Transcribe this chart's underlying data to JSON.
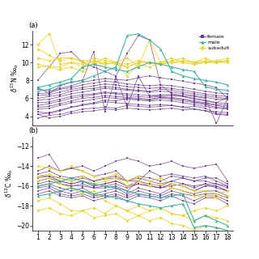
{
  "title_a": "(a)",
  "title_b": "(b)",
  "x_ticks": [
    1,
    2,
    3,
    4,
    5,
    6,
    7,
    8,
    9,
    10,
    11,
    12,
    13,
    14,
    15,
    16,
    17,
    18
  ],
  "ylim_a": [
    3.0,
    13.5
  ],
  "ylim_b": [
    -20.5,
    -11.0
  ],
  "yticks_a": [
    4,
    6,
    8,
    10,
    12
  ],
  "yticks_b": [
    -20,
    -18,
    -16,
    -14,
    -12
  ],
  "colors": {
    "female": "#6B3A8A",
    "male": "#3AAFA0",
    "subadult": "#E8D430"
  },
  "female_N": [
    [
      3.8,
      4.1,
      4.2,
      4.5,
      4.8,
      4.9,
      5.0,
      4.9,
      5.2,
      5.1,
      5.0,
      5.1,
      5.2,
      5.0,
      5.1,
      4.9,
      4.3,
      4.2
    ],
    [
      4.2,
      3.8,
      4.0,
      4.3,
      4.5,
      4.6,
      4.8,
      4.7,
      4.9,
      4.8,
      4.7,
      4.8,
      4.9,
      4.7,
      4.8,
      4.6,
      4.2,
      4.1
    ],
    [
      4.5,
      4.3,
      4.6,
      5.0,
      5.3,
      5.5,
      5.8,
      5.7,
      6.0,
      5.9,
      5.8,
      6.0,
      5.9,
      5.7,
      5.5,
      5.3,
      5.0,
      4.9
    ],
    [
      5.0,
      5.1,
      5.4,
      5.7,
      6.0,
      6.1,
      6.3,
      6.2,
      6.1,
      6.0,
      5.9,
      6.1,
      6.0,
      5.9,
      5.6,
      5.4,
      5.2,
      5.0
    ],
    [
      5.5,
      5.6,
      5.9,
      6.2,
      6.4,
      6.5,
      6.7,
      6.6,
      6.5,
      6.4,
      6.3,
      6.4,
      6.3,
      6.2,
      5.9,
      5.7,
      5.5,
      5.4
    ],
    [
      6.0,
      6.2,
      6.4,
      6.8,
      7.0,
      7.1,
      7.3,
      7.2,
      7.0,
      6.9,
      6.8,
      7.0,
      6.9,
      6.7,
      6.5,
      6.3,
      6.1,
      6.0
    ],
    [
      6.5,
      6.6,
      7.0,
      7.2,
      7.5,
      7.7,
      7.9,
      7.8,
      7.6,
      7.5,
      7.4,
      7.5,
      7.4,
      7.2,
      7.0,
      6.8,
      6.6,
      6.5
    ],
    [
      7.0,
      6.8,
      7.1,
      7.4,
      7.8,
      8.0,
      8.2,
      8.1,
      8.0,
      8.3,
      8.5,
      8.3,
      8.1,
      7.9,
      7.7,
      7.5,
      7.2,
      6.0
    ],
    [
      7.2,
      6.5,
      7.4,
      7.8,
      8.0,
      11.2,
      4.5,
      8.4,
      5.0,
      8.5,
      6.2,
      6.3,
      6.4,
      6.2,
      6.0,
      5.8,
      5.5,
      6.1
    ],
    [
      8.0,
      9.5,
      11.0,
      11.2,
      10.0,
      9.5,
      9.0,
      8.5,
      11.0,
      13.0,
      12.5,
      7.5,
      6.5,
      6.3,
      6.2,
      6.0,
      3.2,
      6.0
    ],
    [
      4.2,
      4.4,
      4.7,
      5.0,
      5.2,
      5.4,
      5.6,
      5.5,
      5.4,
      5.3,
      5.2,
      5.3,
      5.2,
      5.0,
      4.8,
      4.6,
      4.5,
      4.4
    ],
    [
      4.8,
      4.9,
      5.2,
      5.5,
      5.7,
      5.9,
      6.1,
      6.0,
      5.9,
      5.8,
      5.7,
      5.8,
      5.7,
      5.5,
      5.3,
      5.1,
      4.9,
      4.8
    ],
    [
      5.2,
      5.4,
      5.7,
      6.0,
      6.2,
      6.4,
      6.6,
      6.5,
      6.3,
      6.2,
      6.1,
      6.2,
      6.1,
      5.9,
      5.7,
      5.5,
      5.3,
      5.2
    ],
    [
      5.8,
      5.9,
      6.2,
      6.5,
      6.7,
      6.9,
      7.1,
      7.0,
      6.9,
      6.8,
      6.7,
      6.8,
      6.7,
      6.5,
      6.3,
      6.1,
      5.9,
      5.9
    ],
    [
      6.3,
      6.4,
      6.7,
      7.0,
      7.2,
      7.4,
      7.6,
      7.5,
      7.3,
      7.2,
      7.1,
      7.2,
      7.1,
      6.9,
      6.7,
      6.5,
      6.3,
      6.2
    ]
  ],
  "male_N": [
    [
      7.2,
      7.5,
      7.8,
      8.2,
      9.5,
      9.8,
      9.5,
      9.2,
      9.0,
      9.5,
      10.0,
      9.8,
      9.5,
      9.2,
      9.0,
      7.3,
      7.0,
      6.9
    ],
    [
      6.8,
      7.0,
      7.5,
      7.8,
      8.0,
      8.5,
      9.0,
      9.5,
      13.0,
      13.2,
      12.5,
      11.5,
      9.0,
      8.5,
      8.2,
      8.0,
      7.8,
      7.5
    ]
  ],
  "subadult_N": [
    [
      9.5,
      9.6,
      9.5,
      10.0,
      9.8,
      10.2,
      10.0,
      9.8,
      9.5,
      10.0,
      10.0,
      9.8,
      10.0,
      10.2,
      10.0,
      10.2,
      10.1,
      10.2
    ],
    [
      10.5,
      10.2,
      10.5,
      10.5,
      10.2,
      10.0,
      10.5,
      10.0,
      9.8,
      10.2,
      10.0,
      10.0,
      10.2,
      10.5,
      10.0,
      10.0,
      10.2,
      10.5
    ],
    [
      11.5,
      10.8,
      10.2,
      10.5,
      10.0,
      10.5,
      10.2,
      10.0,
      9.5,
      10.0,
      10.0,
      9.8,
      10.0,
      10.2,
      10.0,
      10.5,
      10.0,
      10.2
    ],
    [
      12.0,
      13.2,
      9.8,
      10.0,
      9.5,
      10.2,
      9.8,
      10.0,
      10.5,
      9.5,
      12.5,
      10.0,
      10.5,
      10.0,
      9.8,
      10.0,
      10.0,
      10.2
    ],
    [
      9.8,
      9.5,
      9.2,
      9.5,
      9.0,
      10.0,
      9.8,
      10.0,
      8.5,
      9.8,
      9.5,
      10.0,
      10.0,
      10.0,
      9.8,
      10.0,
      10.0,
      10.0
    ]
  ],
  "female_C": [
    [
      -13.2,
      -12.8,
      -14.5,
      -14.2,
      -14.0,
      -14.5,
      -14.0,
      -13.5,
      -13.2,
      -13.5,
      -14.0,
      -13.8,
      -13.5,
      -14.0,
      -14.2,
      -14.0,
      -13.8,
      -15.5
    ],
    [
      -14.5,
      -14.0,
      -14.5,
      -14.2,
      -14.5,
      -15.0,
      -14.8,
      -14.5,
      -15.5,
      -15.5,
      -14.5,
      -15.0,
      -14.8,
      -15.0,
      -15.2,
      -15.0,
      -15.5,
      -16.0
    ],
    [
      -15.0,
      -15.0,
      -15.2,
      -15.5,
      -15.2,
      -15.5,
      -15.3,
      -15.2,
      -15.5,
      -15.2,
      -15.5,
      -15.8,
      -15.5,
      -15.2,
      -15.5,
      -15.5,
      -15.8,
      -16.0
    ],
    [
      -15.5,
      -15.2,
      -15.5,
      -15.8,
      -15.5,
      -16.0,
      -15.8,
      -15.5,
      -16.0,
      -15.8,
      -16.0,
      -16.2,
      -16.0,
      -15.8,
      -16.0,
      -15.8,
      -16.2,
      -16.5
    ],
    [
      -15.8,
      -15.5,
      -15.8,
      -16.0,
      -16.0,
      -16.2,
      -16.2,
      -16.0,
      -16.5,
      -15.5,
      -16.0,
      -16.2,
      -15.8,
      -16.0,
      -16.5,
      -16.0,
      -16.0,
      -16.5
    ],
    [
      -16.0,
      -15.8,
      -16.2,
      -16.5,
      -16.2,
      -16.8,
      -16.5,
      -16.2,
      -16.8,
      -16.2,
      -16.5,
      -16.8,
      -16.2,
      -16.5,
      -16.8,
      -16.5,
      -16.5,
      -17.0
    ],
    [
      -16.2,
      -16.0,
      -16.5,
      -16.8,
      -16.5,
      -17.0,
      -16.8,
      -16.5,
      -17.0,
      -16.5,
      -16.8,
      -17.0,
      -16.5,
      -16.8,
      -17.0,
      -16.8,
      -16.8,
      -17.2
    ],
    [
      -16.5,
      -16.2,
      -16.8,
      -17.0,
      -16.8,
      -17.2,
      -17.0,
      -16.8,
      -17.2,
      -16.8,
      -17.0,
      -17.2,
      -16.8,
      -17.0,
      -17.5,
      -17.0,
      -17.0,
      -17.5
    ],
    [
      -16.8,
      -16.5,
      -17.0,
      -17.2,
      -17.0,
      -17.5,
      -17.2,
      -17.0,
      -17.5,
      -17.0,
      -17.2,
      -17.5,
      -17.0,
      -17.5,
      -17.8,
      -17.2,
      -17.2,
      -17.8
    ],
    [
      -15.2,
      -15.0,
      -15.5,
      -15.8,
      -15.5,
      -16.0,
      -15.8,
      -15.5,
      -16.0,
      -15.5,
      -15.8,
      -16.0,
      -15.5,
      -15.8,
      -16.2,
      -15.8,
      -15.8,
      -16.2
    ],
    [
      -14.8,
      -14.5,
      -15.0,
      -15.2,
      -15.0,
      -15.5,
      -15.2,
      -15.0,
      -15.5,
      -15.0,
      -15.2,
      -15.5,
      -15.0,
      -15.2,
      -15.5,
      -15.2,
      -15.2,
      -15.8
    ],
    [
      -15.5,
      -15.2,
      -15.8,
      -16.0,
      -15.8,
      -16.2,
      -16.0,
      -15.8,
      -16.2,
      -15.8,
      -16.0,
      -16.2,
      -15.8,
      -16.0,
      -16.5,
      -16.0,
      -16.0,
      -16.5
    ]
  ],
  "male_C": [
    [
      -16.0,
      -15.8,
      -15.5,
      -15.2,
      -15.5,
      -15.8,
      -16.0,
      -16.2,
      -16.5,
      -16.8,
      -17.0,
      -17.2,
      -17.0,
      -16.8,
      -19.5,
      -19.0,
      -19.5,
      -20.0
    ],
    [
      -17.0,
      -16.8,
      -16.5,
      -16.2,
      -16.5,
      -16.8,
      -17.0,
      -17.2,
      -17.5,
      -17.8,
      -18.0,
      -18.2,
      -18.0,
      -17.8,
      -20.2,
      -20.0,
      -20.2,
      -20.5
    ]
  ],
  "subadult_C": [
    [
      -14.0,
      -14.2,
      -14.5,
      -14.0,
      -14.5,
      -15.0,
      -15.2,
      -14.8,
      -15.5,
      -15.0,
      -15.5,
      -15.2,
      -15.8,
      -16.0,
      -16.5,
      -16.5,
      -16.8,
      -16.5
    ],
    [
      -15.0,
      -14.8,
      -15.2,
      -15.5,
      -15.0,
      -15.8,
      -15.5,
      -15.2,
      -16.0,
      -15.5,
      -16.0,
      -15.8,
      -16.2,
      -16.5,
      -17.0,
      -17.0,
      -17.2,
      -17.0
    ],
    [
      -15.5,
      -15.2,
      -15.8,
      -16.2,
      -16.8,
      -16.5,
      -17.5,
      -18.0,
      -18.5,
      -19.0,
      -18.5,
      -18.2,
      -18.8,
      -19.0,
      -18.5,
      -18.2,
      -18.5,
      -18.0
    ],
    [
      -17.5,
      -17.2,
      -17.8,
      -18.5,
      -18.5,
      -18.2,
      -18.8,
      -18.0,
      -18.5,
      -18.0,
      -18.5,
      -18.2,
      -18.8,
      -19.0,
      -19.5,
      -19.0,
      -19.2,
      -19.5
    ],
    [
      -18.5,
      -18.2,
      -18.8,
      -19.0,
      -18.5,
      -19.2,
      -19.0,
      -18.8,
      -19.5,
      -19.0,
      -19.5,
      -19.2,
      -19.8,
      -20.0,
      -20.5,
      -20.0,
      -20.2,
      -20.5
    ]
  ]
}
